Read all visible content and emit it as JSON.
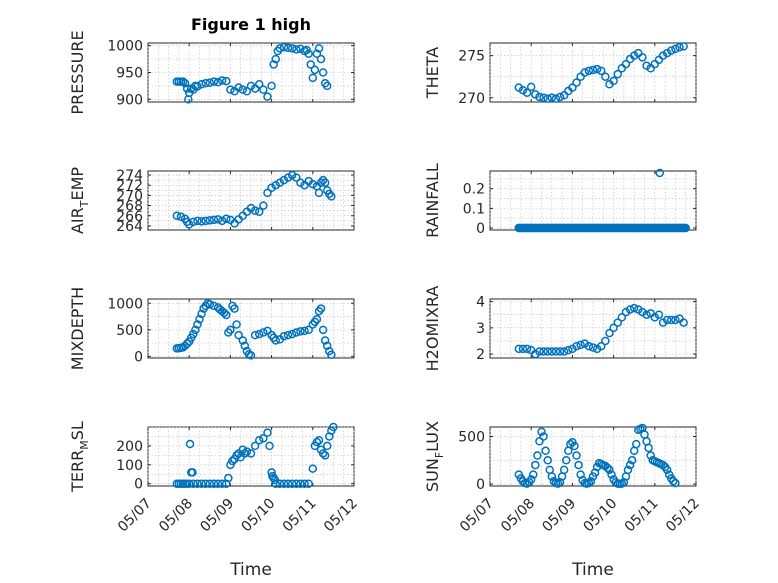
{
  "figure": {
    "title": "Figure 1 high"
  },
  "chart_data": [
    {
      "id": "pressure",
      "type": "scatter",
      "ylabel": "PRESSURE",
      "ylim": [
        895,
        1005
      ],
      "yticks": [
        900,
        950,
        1000
      ],
      "xlim": [
        0,
        5
      ],
      "xlabel": "",
      "x": [
        0.7,
        0.75,
        0.8,
        0.85,
        0.9,
        0.95,
        0.98,
        1.0,
        1.05,
        1.1,
        1.15,
        1.2,
        1.3,
        1.4,
        1.5,
        1.6,
        1.7,
        1.8,
        1.9,
        2.0,
        2.1,
        2.2,
        2.3,
        2.4,
        2.5,
        2.6,
        2.7,
        2.8,
        2.9,
        3.0,
        3.05,
        3.1,
        3.15,
        3.2,
        3.3,
        3.4,
        3.5,
        3.6,
        3.7,
        3.8,
        3.85,
        3.9,
        3.95,
        4.0,
        4.05,
        4.1,
        4.15,
        4.2,
        4.25,
        4.3,
        4.35
      ],
      "y": [
        933,
        933,
        933,
        933,
        930,
        920,
        900,
        912,
        920,
        918,
        925,
        924,
        928,
        930,
        931,
        933,
        932,
        935,
        934,
        918,
        915,
        922,
        918,
        915,
        925,
        920,
        928,
        918,
        905,
        925,
        965,
        975,
        990,
        995,
        997,
        996,
        995,
        993,
        994,
        990,
        992,
        985,
        965,
        940,
        955,
        985,
        995,
        975,
        950,
        930,
        925
      ]
    },
    {
      "id": "theta",
      "type": "scatter",
      "ylabel": "THETA",
      "ylim": [
        269.5,
        276.5
      ],
      "yticks": [
        270,
        275
      ],
      "xlim": [
        0,
        5
      ],
      "xlabel": "",
      "x": [
        0.7,
        0.8,
        0.9,
        1.0,
        1.1,
        1.2,
        1.3,
        1.4,
        1.5,
        1.6,
        1.7,
        1.8,
        1.9,
        2.0,
        2.1,
        2.2,
        2.3,
        2.4,
        2.5,
        2.6,
        2.7,
        2.8,
        2.9,
        3.0,
        3.1,
        3.2,
        3.3,
        3.4,
        3.5,
        3.6,
        3.7,
        3.8,
        3.9,
        4.0,
        4.1,
        4.2,
        4.3,
        4.4,
        4.5,
        4.6,
        4.7
      ],
      "y": [
        271.2,
        270.9,
        270.6,
        271.3,
        270.4,
        270.1,
        270.0,
        269.9,
        270.0,
        269.9,
        270.1,
        270.3,
        270.8,
        271.2,
        271.8,
        272.5,
        273.0,
        273.2,
        273.3,
        273.4,
        273.2,
        272.5,
        271.6,
        272.0,
        272.8,
        273.5,
        274.0,
        274.6,
        275.0,
        275.3,
        274.8,
        273.8,
        273.5,
        274.0,
        274.5,
        275.0,
        275.3,
        275.6,
        275.8,
        276.0,
        276.1
      ]
    },
    {
      "id": "air_temp",
      "type": "scatter",
      "ylabel": "AIR_TEMP",
      "ylabel_main": "AIR",
      "ylabel_sub": "T",
      "ylabel_rest": "EMP",
      "ylim": [
        263.2,
        274.8
      ],
      "yticks": [
        264,
        266,
        268,
        270,
        272,
        274
      ],
      "xlim": [
        0,
        5
      ],
      "xlabel": "",
      "x": [
        0.7,
        0.8,
        0.9,
        0.95,
        1.0,
        1.1,
        1.2,
        1.3,
        1.4,
        1.5,
        1.6,
        1.7,
        1.8,
        1.9,
        2.0,
        2.1,
        2.2,
        2.3,
        2.4,
        2.5,
        2.6,
        2.7,
        2.8,
        2.9,
        3.0,
        3.1,
        3.2,
        3.3,
        3.4,
        3.5,
        3.6,
        3.7,
        3.8,
        3.9,
        4.0,
        4.1,
        4.15,
        4.2,
        4.25,
        4.3,
        4.35,
        4.4,
        4.45
      ],
      "y": [
        266.0,
        265.8,
        265.4,
        264.8,
        264.3,
        264.8,
        265.0,
        264.9,
        265.0,
        265.1,
        265.2,
        265.3,
        265.0,
        265.4,
        265.2,
        264.5,
        265.3,
        266.0,
        266.8,
        267.5,
        267.0,
        266.8,
        268.0,
        270.5,
        271.5,
        272.0,
        272.5,
        273.0,
        273.5,
        274.0,
        273.5,
        272.5,
        272.0,
        272.8,
        272.2,
        271.8,
        270.5,
        272.5,
        273.0,
        272.5,
        271.0,
        270.3,
        269.8
      ]
    },
    {
      "id": "rainfall",
      "type": "scatter",
      "ylabel": "RAINFALL",
      "ylim": [
        -0.01,
        0.29
      ],
      "yticks": [
        0,
        0.1,
        0.2
      ],
      "xlim": [
        0,
        5
      ],
      "xlabel": "",
      "x": [
        0.7,
        0.8,
        0.9,
        1.0,
        1.1,
        1.2,
        1.3,
        1.4,
        1.5,
        1.6,
        1.7,
        1.8,
        1.9,
        2.0,
        2.1,
        2.2,
        2.3,
        2.4,
        2.5,
        2.6,
        2.7,
        2.8,
        2.9,
        3.0,
        3.1,
        3.2,
        3.3,
        3.4,
        3.5,
        3.6,
        3.7,
        3.8,
        3.9,
        4.0,
        4.1,
        4.2,
        4.3,
        4.4,
        4.5,
        4.6,
        4.7,
        4.12
      ],
      "y": [
        0,
        0,
        0,
        0,
        0,
        0,
        0,
        0,
        0,
        0,
        0,
        0,
        0,
        0,
        0,
        0,
        0,
        0,
        0,
        0,
        0,
        0,
        0,
        0,
        0,
        0,
        0,
        0,
        0,
        0,
        0,
        0,
        0,
        0,
        0,
        0,
        0,
        0,
        0,
        0,
        0,
        0.28
      ]
    },
    {
      "id": "mixdepth",
      "type": "scatter",
      "ylabel": "MIXDEPTH",
      "ylim": [
        -30,
        1080
      ],
      "yticks": [
        0,
        500,
        1000
      ],
      "xlim": [
        0,
        5
      ],
      "xlabel": "",
      "x": [
        0.7,
        0.75,
        0.8,
        0.85,
        0.9,
        0.95,
        1.0,
        1.05,
        1.1,
        1.15,
        1.2,
        1.25,
        1.3,
        1.35,
        1.4,
        1.45,
        1.5,
        1.6,
        1.7,
        1.75,
        1.8,
        1.85,
        1.9,
        1.95,
        2.0,
        2.05,
        2.1,
        2.15,
        2.2,
        2.3,
        2.35,
        2.4,
        2.45,
        2.5,
        2.6,
        2.7,
        2.8,
        2.9,
        3.0,
        3.05,
        3.1,
        3.2,
        3.3,
        3.4,
        3.5,
        3.6,
        3.7,
        3.8,
        3.9,
        4.0,
        4.05,
        4.1,
        4.15,
        4.2,
        4.25,
        4.3,
        4.35,
        4.4,
        4.45
      ],
      "y": [
        150,
        155,
        160,
        170,
        200,
        240,
        280,
        350,
        420,
        500,
        600,
        700,
        800,
        900,
        950,
        1000,
        980,
        950,
        920,
        880,
        850,
        820,
        780,
        450,
        500,
        950,
        900,
        600,
        400,
        300,
        200,
        100,
        40,
        20,
        400,
        420,
        450,
        480,
        400,
        350,
        300,
        320,
        380,
        400,
        420,
        450,
        470,
        480,
        500,
        600,
        650,
        700,
        850,
        900,
        500,
        300,
        200,
        100,
        30
      ]
    },
    {
      "id": "h2omixra",
      "type": "scatter",
      "ylabel": "H2OMIXRA",
      "ylim": [
        1.85,
        4.1
      ],
      "yticks": [
        2,
        3,
        4
      ],
      "xlim": [
        0,
        5
      ],
      "xlabel": "",
      "x": [
        0.7,
        0.8,
        0.9,
        1.0,
        1.1,
        1.2,
        1.3,
        1.4,
        1.5,
        1.6,
        1.7,
        1.8,
        1.9,
        2.0,
        2.1,
        2.2,
        2.3,
        2.4,
        2.5,
        2.6,
        2.7,
        2.8,
        2.9,
        3.0,
        3.1,
        3.2,
        3.3,
        3.4,
        3.5,
        3.6,
        3.7,
        3.8,
        3.9,
        4.0,
        4.1,
        4.2,
        4.3,
        4.4,
        4.5,
        4.6,
        4.7
      ],
      "y": [
        2.2,
        2.2,
        2.2,
        2.15,
        2.0,
        2.1,
        2.1,
        2.1,
        2.1,
        2.1,
        2.1,
        2.1,
        2.15,
        2.2,
        2.3,
        2.35,
        2.4,
        2.3,
        2.25,
        2.2,
        2.3,
        2.5,
        2.8,
        3.0,
        3.2,
        3.4,
        3.6,
        3.7,
        3.75,
        3.7,
        3.6,
        3.5,
        3.55,
        3.4,
        3.5,
        3.2,
        3.3,
        3.3,
        3.3,
        3.35,
        3.2
      ]
    },
    {
      "id": "terr_msl",
      "type": "scatter",
      "ylabel": "TERR_MSL",
      "ylabel_main": "TERR",
      "ylabel_sub": "M",
      "ylabel_rest": "SL",
      "ylim": [
        -12,
        300
      ],
      "yticks": [
        0,
        100,
        200
      ],
      "xlim": [
        0,
        5
      ],
      "xlabel": "Time",
      "xticklabels": [
        "05/07",
        "05/08",
        "05/09",
        "05/10",
        "05/11",
        "05/12"
      ],
      "x": [
        0.7,
        0.75,
        0.8,
        0.85,
        0.9,
        0.95,
        1.0,
        1.02,
        1.05,
        1.08,
        1.1,
        1.2,
        1.3,
        1.4,
        1.5,
        1.6,
        1.7,
        1.8,
        1.9,
        1.95,
        2.0,
        2.05,
        2.1,
        2.15,
        2.2,
        2.25,
        2.3,
        2.35,
        2.4,
        2.5,
        2.6,
        2.7,
        2.8,
        2.9,
        2.95,
        3.0,
        3.02,
        3.05,
        3.08,
        3.1,
        3.2,
        3.3,
        3.4,
        3.5,
        3.6,
        3.7,
        3.8,
        3.9,
        4.0,
        4.05,
        4.1,
        4.15,
        4.2,
        4.25,
        4.3,
        4.35,
        4.4,
        4.45,
        4.5
      ],
      "y": [
        0,
        0,
        0,
        0,
        0,
        0,
        0,
        210,
        60,
        60,
        0,
        0,
        0,
        0,
        0,
        0,
        0,
        0,
        0,
        30,
        100,
        120,
        130,
        150,
        160,
        140,
        180,
        160,
        170,
        160,
        200,
        230,
        240,
        270,
        200,
        60,
        40,
        30,
        20,
        0,
        0,
        0,
        0,
        0,
        0,
        0,
        0,
        0,
        80,
        200,
        220,
        230,
        180,
        160,
        150,
        200,
        250,
        280,
        300
      ]
    },
    {
      "id": "sun_flux",
      "type": "scatter",
      "ylabel": "SUN_FLUX",
      "ylabel_main": "SUN",
      "ylabel_sub": "F",
      "ylabel_rest": "LUX",
      "ylim": [
        -20,
        600
      ],
      "yticks": [
        0,
        500
      ],
      "xlim": [
        0,
        5
      ],
      "xlabel": "Time",
      "xticklabels": [
        "05/07",
        "05/08",
        "05/09",
        "05/10",
        "05/11",
        "05/12"
      ],
      "x": [
        0.7,
        0.75,
        0.8,
        0.85,
        0.9,
        0.95,
        1.0,
        1.05,
        1.1,
        1.15,
        1.2,
        1.25,
        1.3,
        1.35,
        1.4,
        1.45,
        1.5,
        1.55,
        1.6,
        1.65,
        1.7,
        1.75,
        1.8,
        1.85,
        1.9,
        1.95,
        2.0,
        2.05,
        2.1,
        2.15,
        2.2,
        2.25,
        2.3,
        2.35,
        2.4,
        2.45,
        2.5,
        2.55,
        2.6,
        2.65,
        2.7,
        2.75,
        2.8,
        2.85,
        2.9,
        2.95,
        3.0,
        3.05,
        3.1,
        3.15,
        3.2,
        3.25,
        3.3,
        3.35,
        3.4,
        3.45,
        3.5,
        3.55,
        3.6,
        3.65,
        3.7,
        3.75,
        3.8,
        3.85,
        3.9,
        3.95,
        4.0,
        4.05,
        4.1,
        4.15,
        4.2,
        4.25,
        4.3,
        4.35,
        4.4,
        4.45,
        4.5
      ],
      "y": [
        100,
        60,
        30,
        10,
        5,
        20,
        50,
        100,
        200,
        300,
        450,
        550,
        500,
        350,
        250,
        150,
        80,
        30,
        10,
        5,
        20,
        80,
        150,
        250,
        350,
        420,
        440,
        400,
        300,
        200,
        100,
        40,
        10,
        5,
        10,
        30,
        80,
        120,
        180,
        220,
        210,
        200,
        190,
        170,
        150,
        100,
        50,
        20,
        5,
        2,
        5,
        20,
        80,
        150,
        200,
        250,
        350,
        420,
        570,
        580,
        590,
        520,
        450,
        380,
        300,
        250,
        240,
        230,
        220,
        210,
        200,
        180,
        150,
        100,
        60,
        30,
        10
      ]
    }
  ]
}
